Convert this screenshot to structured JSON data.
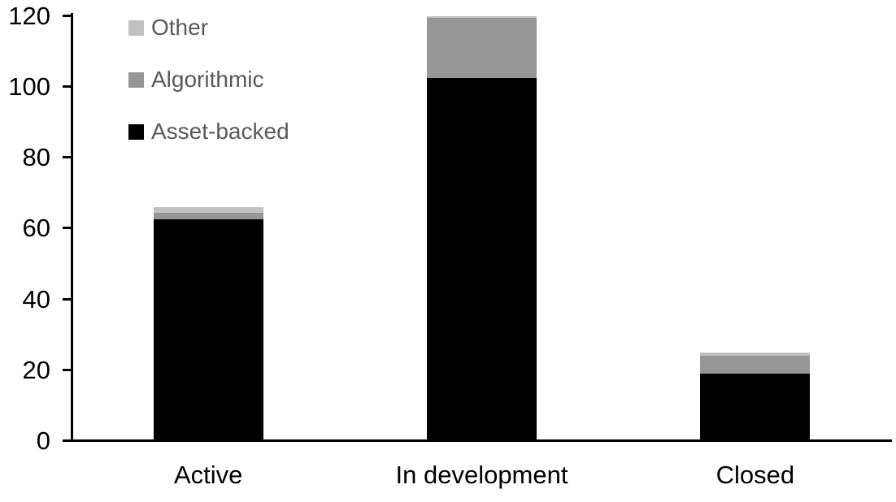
{
  "chart_data": {
    "type": "bar",
    "stacked": true,
    "title": "",
    "xlabel": "",
    "ylabel": "",
    "categories": [
      "Active",
      "In development",
      "Closed"
    ],
    "series": [
      {
        "name": "Asset-backed",
        "color": "#000000",
        "values": [
          62.5,
          102.5,
          19
        ]
      },
      {
        "name": "Algorithmic",
        "color": "#969696",
        "values": [
          2,
          17,
          5
        ]
      },
      {
        "name": "Other",
        "color": "#c0c0c0",
        "values": [
          1.5,
          0.5,
          1
        ]
      }
    ],
    "totals": [
      66,
      120,
      25
    ],
    "yticks": [
      0,
      20,
      40,
      60,
      80,
      100,
      120
    ],
    "ylim": [
      0,
      120
    ],
    "grid": false,
    "legend_position": "top-left-inside",
    "legend_order": [
      "Other",
      "Algorithmic",
      "Asset-backed"
    ]
  },
  "styles": {
    "background": "#ffffff",
    "axis_color": "#000000",
    "tick_label_color": "#000000",
    "category_label_color": "#000000",
    "legend_text_color": "#595959"
  }
}
